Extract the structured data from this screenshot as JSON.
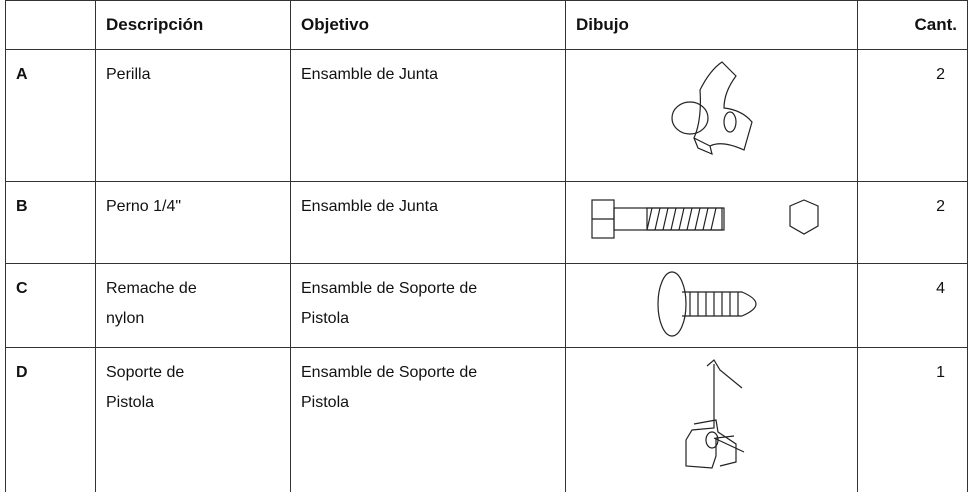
{
  "table": {
    "header": [
      "Descripción",
      "Objetivo",
      "Dibujo",
      "Cant."
    ],
    "rows": [
      {
        "id": "A",
        "description": "Perilla",
        "purpose": "Ensamble de Junta",
        "quantity": 2
      },
      {
        "id": "B",
        "description": "Perno 1/4\"",
        "purpose": "Ensamble de Junta",
        "quantity": 2
      },
      {
        "id": "C",
        "description": "Remache de nylon",
        "purpose": "Ensamble de Soporte de Pistola",
        "quantity": 4
      },
      {
        "id": "D",
        "description": "Soporte de Pistola",
        "purpose": "Ensamble de Soporte de Pistola",
        "quantity": 1
      }
    ]
  }
}
